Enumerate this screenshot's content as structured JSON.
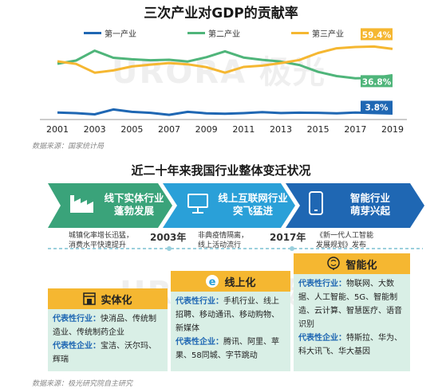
{
  "chart": {
    "title": "三次产业对GDP的贡献率",
    "source": "数据来源：国家统计局",
    "watermark": "URORA 极光"
  },
  "chart_data": {
    "type": "line",
    "title": "三次产业对GDP的贡献率",
    "x": [
      2001,
      2002,
      2003,
      2004,
      2005,
      2006,
      2007,
      2008,
      2009,
      2010,
      2011,
      2012,
      2013,
      2014,
      2015,
      2016,
      2017,
      2018,
      2019
    ],
    "xticks": [
      "2001",
      "2003",
      "2005",
      "2007",
      "2009",
      "2011",
      "2013",
      "2015",
      "2017",
      "2019"
    ],
    "ylim": [
      0,
      70
    ],
    "series": [
      {
        "name": "第一产业",
        "color": "#1f67b3",
        "values": [
          4.6,
          4.1,
          3.1,
          7.3,
          5.2,
          4.4,
          2.7,
          5.2,
          4.0,
          3.6,
          4.1,
          5.0,
          4.2,
          4.5,
          4.4,
          4.0,
          4.6,
          4.2,
          3.8
        ]
      },
      {
        "name": "第二产业",
        "color": "#4fb57a",
        "values": [
          46.7,
          49.4,
          57.9,
          51.8,
          50.5,
          49.7,
          50.1,
          48.6,
          52.3,
          57.4,
          52.0,
          50.0,
          48.5,
          45.6,
          39.7,
          36.0,
          34.2,
          34.4,
          36.8
        ]
      },
      {
        "name": "第三产业",
        "color": "#f5b731",
        "values": [
          48.7,
          46.5,
          39.0,
          40.9,
          44.3,
          45.9,
          47.3,
          46.2,
          43.7,
          39.0,
          43.9,
          45.0,
          47.3,
          49.9,
          55.9,
          60.0,
          61.1,
          61.5,
          59.4
        ]
      }
    ],
    "data_labels": [
      {
        "series": "第三产业",
        "x": 2019,
        "text": "59.4%"
      },
      {
        "series": "第二产业",
        "x": 2019,
        "text": "36.8%"
      },
      {
        "series": "第一产业",
        "x": 2019,
        "text": "3.8%"
      }
    ]
  },
  "section": {
    "title": "近二十年来我国行业整体变迁状况",
    "source": "数据来源：极光研究院自主研究",
    "stages": [
      {
        "line1": "线下实体行业",
        "line2": "蓬勃发展",
        "color": "#3aa37a",
        "icon": "factory-icon"
      },
      {
        "line1": "线上互联网行业",
        "line2": "突飞猛进",
        "color": "#2aa0d8",
        "icon": "computer-icon"
      },
      {
        "line1": "智能行业",
        "line2": "萌芽兴起",
        "color": "#1f67b3",
        "icon": "phone-icon"
      }
    ],
    "notes": [
      {
        "line1": "城镇化率增长迅猛，",
        "line2": "消费水平快速提升"
      },
      {
        "line1": "非典疫情隔离，",
        "line2": "线上活动流行"
      },
      {
        "line1": "《新一代人工智能",
        "line2": "发展规划》发布"
      }
    ],
    "years": [
      "2003年",
      "2017年"
    ],
    "cards": [
      {
        "title": "实体化",
        "icon": "store-icon",
        "industry_label": "代表性行业：",
        "industry_text": "快消品、传统制造业、传统制药企业",
        "company_label": "代表性企业：",
        "company_text": "宝洁、沃尔玛、辉瑞"
      },
      {
        "title": "线上化",
        "icon": "ie-browser-icon",
        "industry_label": "代表性行业：",
        "industry_text": "手机行业、线上招聘、移动通讯、移动购物、新媒体",
        "company_label": "代表性企业：",
        "company_text": "腾讯、阿里、苹果、58同城、字节跳动"
      },
      {
        "title": "智能化",
        "icon": "brain-icon",
        "industry_label": "代表性行业：",
        "industry_text": "物联网、大数据、人工智能、5G、智能制造、云计算、智慧医疗、语音识别",
        "company_label": "代表性企业：",
        "company_text": "特斯拉、华为、科大讯飞、华大基因"
      }
    ]
  }
}
